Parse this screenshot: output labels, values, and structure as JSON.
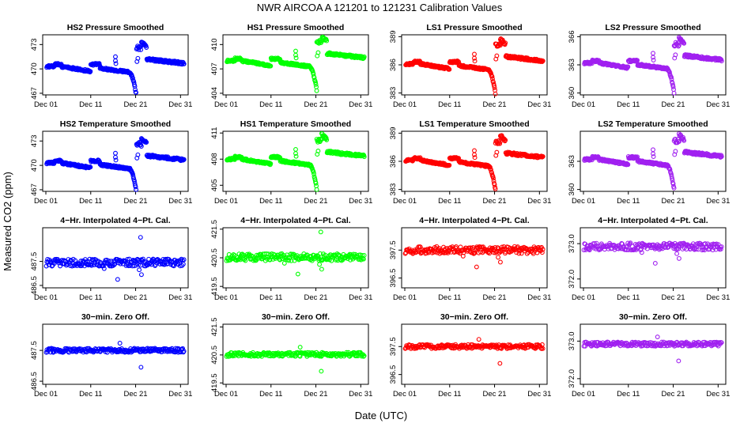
{
  "figure": {
    "title": "NWR   AIRCOA A   121201 to 121231   Calibration Values",
    "xlabel": "Date (UTC)",
    "ylabel": "Measured CO2 (ppm)"
  },
  "colors": {
    "blue": "#0000ff",
    "green": "#00ff00",
    "red": "#ff0000",
    "purple": "#a020f0"
  },
  "chart_data": [
    {
      "type": "scatter",
      "title": "HS2 Pressure Smoothed",
      "color": "blue",
      "ylim": [
        466.8,
        474.2
      ],
      "yticks": [
        "467",
        "470",
        "473"
      ],
      "ytick_values": [
        467,
        470,
        473
      ],
      "base": 470.3,
      "profile": "smoothed",
      "xlim": [
        0,
        31
      ],
      "xticks": [
        "Dec 01",
        "Dec 11",
        "Dec 21",
        "Dec 31"
      ],
      "xtick_values": [
        0,
        10,
        20,
        30
      ]
    },
    {
      "type": "scatter",
      "title": "HS1 Pressure Smoothed",
      "color": "green",
      "ylim": [
        403.8,
        411.2
      ],
      "yticks": [
        "404",
        "407",
        "410"
      ],
      "ytick_values": [
        404,
        407,
        410
      ],
      "base": 408.0,
      "profile": "smoothed",
      "xlim": [
        0,
        31
      ],
      "xticks": [
        "Dec 01",
        "Dec 11",
        "Dec 21",
        "Dec 31"
      ],
      "xtick_values": [
        0,
        10,
        20,
        30
      ]
    },
    {
      "type": "scatter",
      "title": "LS1 Pressure Smoothed",
      "color": "red",
      "ylim": [
        382.8,
        389.2
      ],
      "yticks": [
        "383",
        "386",
        "389"
      ],
      "ytick_values": [
        383,
        386,
        389
      ],
      "base": 386.1,
      "profile": "smoothed",
      "xlim": [
        0,
        31
      ],
      "xticks": [
        "Dec 01",
        "Dec 11",
        "Dec 21",
        "Dec 31"
      ],
      "xtick_values": [
        0,
        10,
        20,
        30
      ]
    },
    {
      "type": "scatter",
      "title": "LS2 Pressure Smoothed",
      "color": "purple",
      "ylim": [
        359.8,
        366.2
      ],
      "yticks": [
        "360",
        "363",
        "366"
      ],
      "ytick_values": [
        360,
        363,
        366
      ],
      "base": 363.2,
      "profile": "smoothed",
      "xlim": [
        0,
        31
      ],
      "xticks": [
        "Dec 01",
        "Dec 11",
        "Dec 21",
        "Dec 31"
      ],
      "xtick_values": [
        0,
        10,
        20,
        30
      ]
    },
    {
      "type": "scatter",
      "title": "HS2 Temperature Smoothed",
      "color": "blue",
      "ylim": [
        466.8,
        474.2
      ],
      "yticks": [
        "467",
        "470",
        "473"
      ],
      "ytick_values": [
        467,
        470,
        473
      ],
      "base": 470.3,
      "profile": "smoothed",
      "xlim": [
        0,
        31
      ],
      "xticks": [
        "Dec 01",
        "Dec 11",
        "Dec 21",
        "Dec 31"
      ],
      "xtick_values": [
        0,
        10,
        20,
        30
      ]
    },
    {
      "type": "scatter",
      "title": "HS1 Temperature Smoothed",
      "color": "green",
      "ylim": [
        404.3,
        411.2
      ],
      "yticks": [
        "405",
        "408",
        "411"
      ],
      "ytick_values": [
        405,
        408,
        411
      ],
      "base": 408.0,
      "profile": "smoothed",
      "xlim": [
        0,
        31
      ],
      "xticks": [
        "Dec 01",
        "Dec 11",
        "Dec 21",
        "Dec 31"
      ],
      "xtick_values": [
        0,
        10,
        20,
        30
      ]
    },
    {
      "type": "scatter",
      "title": "LS1 Temperature Smoothed",
      "color": "red",
      "ylim": [
        382.8,
        389.2
      ],
      "yticks": [
        "383",
        "386",
        "389"
      ],
      "ytick_values": [
        383,
        386,
        389
      ],
      "base": 386.1,
      "profile": "smoothed",
      "xlim": [
        0,
        31
      ],
      "xticks": [
        "Dec 01",
        "Dec 11",
        "Dec 21",
        "Dec 31"
      ],
      "xtick_values": [
        0,
        10,
        20,
        30
      ]
    },
    {
      "type": "scatter",
      "title": "LS2 Temperature Smoothed",
      "color": "purple",
      "ylim": [
        359.8,
        366.2
      ],
      "yticks": [
        "360",
        "363"
      ],
      "ytick_values": [
        360,
        363
      ],
      "base": 363.2,
      "profile": "smoothed",
      "xlim": [
        0,
        31
      ],
      "xticks": [
        "Dec 01",
        "Dec 11",
        "Dec 21",
        "Dec 31"
      ],
      "xtick_values": [
        0,
        10,
        20,
        30
      ]
    },
    {
      "type": "scatter",
      "title": "4−Hr. Interpolated 4−Pt. Cal.",
      "color": "blue",
      "ylim": [
        486.4,
        488.9
      ],
      "yticks": [
        "486.5",
        "487.5"
      ],
      "ytick_values": [
        486.5,
        487.5
      ],
      "base": 487.45,
      "profile": "interp",
      "xlim": [
        0,
        31
      ],
      "xticks": [
        "Dec 01",
        "Dec 11",
        "Dec 21",
        "Dec 31"
      ],
      "xtick_values": [
        0,
        10,
        20,
        30
      ]
    },
    {
      "type": "scatter",
      "title": "4−Hr. Interpolated 4−Pt. Cal.",
      "color": "green",
      "ylim": [
        419.45,
        421.55
      ],
      "yticks": [
        "419.5",
        "420.5",
        "421.5"
      ],
      "ytick_values": [
        419.5,
        420.5,
        421.5
      ],
      "base": 420.52,
      "profile": "interp",
      "xlim": [
        0,
        31
      ],
      "xticks": [
        "Dec 01",
        "Dec 11",
        "Dec 21",
        "Dec 31"
      ],
      "xtick_values": [
        0,
        10,
        20,
        30
      ]
    },
    {
      "type": "scatter",
      "title": "4−Hr. Interpolated 4−Pt. Cal.",
      "color": "red",
      "ylim": [
        396.15,
        398.3
      ],
      "yticks": [
        "396.5",
        "397.5"
      ],
      "ytick_values": [
        396.5,
        397.5
      ],
      "base": 397.5,
      "profile": "interp",
      "xlim": [
        0,
        31
      ],
      "xticks": [
        "Dec 01",
        "Dec 11",
        "Dec 21",
        "Dec 31"
      ],
      "xtick_values": [
        0,
        10,
        20,
        30
      ]
    },
    {
      "type": "scatter",
      "title": "4−Hr. Interpolated 4−Pt. Cal.",
      "color": "purple",
      "ylim": [
        371.75,
        373.45
      ],
      "yticks": [
        "372.0",
        "373.0"
      ],
      "ytick_values": [
        372.0,
        373.0
      ],
      "base": 372.92,
      "profile": "interp",
      "xlim": [
        0,
        31
      ],
      "xticks": [
        "Dec 01",
        "Dec 11",
        "Dec 21",
        "Dec 31"
      ],
      "xtick_values": [
        0,
        10,
        20,
        30
      ]
    },
    {
      "type": "scatter",
      "title": "30−min. Zero Off.",
      "color": "blue",
      "ylim": [
        486.4,
        488.35
      ],
      "yticks": [
        "486.5",
        "487.5"
      ],
      "ytick_values": [
        486.5,
        487.5
      ],
      "base": 487.5,
      "profile": "zero",
      "xlim": [
        0,
        31
      ],
      "xticks": [
        "Dec 01",
        "Dec 11",
        "Dec 21",
        "Dec 31"
      ],
      "xtick_values": [
        0,
        10,
        20,
        30
      ]
    },
    {
      "type": "scatter",
      "title": "30−min. Zero Off.",
      "color": "green",
      "ylim": [
        419.45,
        421.6
      ],
      "yticks": [
        "419.5",
        "420.5",
        "421.5"
      ],
      "ytick_values": [
        419.5,
        420.5,
        421.5
      ],
      "base": 420.52,
      "profile": "zero",
      "xlim": [
        0,
        31
      ],
      "xticks": [
        "Dec 01",
        "Dec 11",
        "Dec 21",
        "Dec 31"
      ],
      "xtick_values": [
        0,
        10,
        20,
        30
      ]
    },
    {
      "type": "scatter",
      "title": "30−min. Zero Off.",
      "color": "red",
      "ylim": [
        396.15,
        398.3
      ],
      "yticks": [
        "396.5",
        "397.5"
      ],
      "ytick_values": [
        396.5,
        397.5
      ],
      "base": 397.5,
      "profile": "zero",
      "xlim": [
        0,
        31
      ],
      "xticks": [
        "Dec 01",
        "Dec 11",
        "Dec 21",
        "Dec 31"
      ],
      "xtick_values": [
        0,
        10,
        20,
        30
      ]
    },
    {
      "type": "scatter",
      "title": "30−min. Zero Off.",
      "color": "purple",
      "ylim": [
        371.85,
        373.45
      ],
      "yticks": [
        "372.0",
        "373.0"
      ],
      "ytick_values": [
        372.0,
        373.0
      ],
      "base": 372.92,
      "profile": "zero",
      "xlim": [
        0,
        31
      ],
      "xticks": [
        "Dec 01",
        "Dec 11",
        "Dec 21",
        "Dec 31"
      ],
      "xtick_values": [
        0,
        10,
        20,
        30
      ]
    }
  ]
}
